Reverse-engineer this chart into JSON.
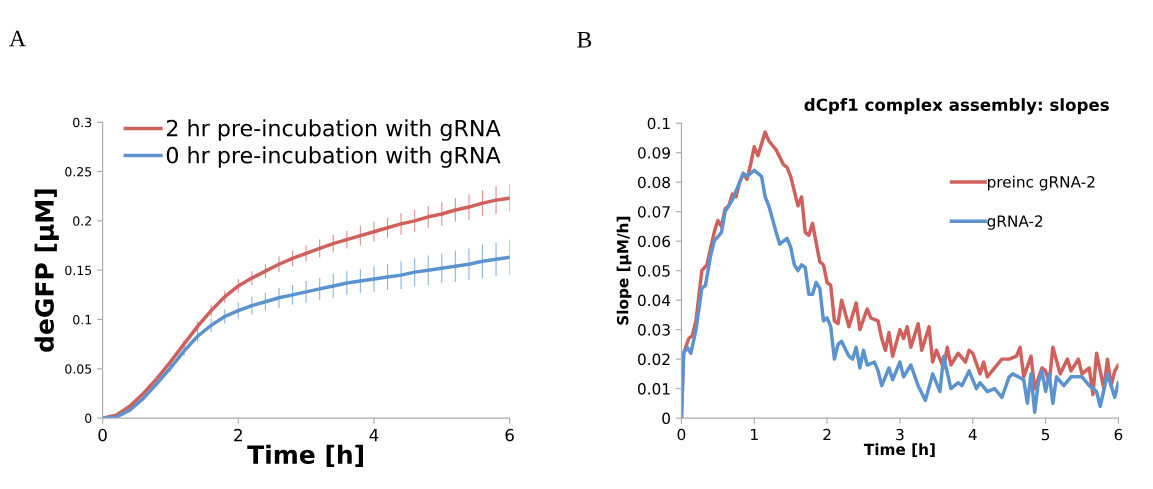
{
  "chart_data": [
    {
      "type": "line",
      "title": "A",
      "xlabel": "Time [h]",
      "ylabel": "deGFP [µM]",
      "x": [
        0,
        0.2,
        0.4,
        0.6,
        0.8,
        1.0,
        1.2,
        1.4,
        1.6,
        1.8,
        2.0,
        2.2,
        2.4,
        2.6,
        2.8,
        3.0,
        3.2,
        3.4,
        3.6,
        3.8,
        4.0,
        4.2,
        4.4,
        4.6,
        4.8,
        5.0,
        5.2,
        5.4,
        5.6,
        5.8,
        6.0
      ],
      "series": [
        {
          "name": "2 hr pre-incubation with gRNA",
          "color": "#d0605b",
          "values": [
            0,
            0.003,
            0.012,
            0.025,
            0.04,
            0.057,
            0.075,
            0.093,
            0.109,
            0.123,
            0.134,
            0.142,
            0.149,
            0.156,
            0.162,
            0.167,
            0.172,
            0.177,
            0.181,
            0.185,
            0.189,
            0.193,
            0.197,
            0.2,
            0.204,
            0.207,
            0.211,
            0.214,
            0.218,
            0.221,
            0.223
          ],
          "errors": [
            0,
            0.001,
            0.001,
            0.002,
            0.002,
            0.003,
            0.004,
            0.005,
            0.006,
            0.006,
            0.007,
            0.007,
            0.007,
            0.008,
            0.008,
            0.008,
            0.009,
            0.009,
            0.009,
            0.01,
            0.01,
            0.01,
            0.011,
            0.011,
            0.011,
            0.012,
            0.012,
            0.013,
            0.013,
            0.014,
            0.014
          ]
        },
        {
          "name": "0 hr pre-incubation with gRNA",
          "color": "#5b93cf",
          "values": [
            0,
            0.001,
            0.008,
            0.02,
            0.035,
            0.051,
            0.068,
            0.083,
            0.094,
            0.103,
            0.109,
            0.114,
            0.118,
            0.122,
            0.125,
            0.128,
            0.131,
            0.134,
            0.137,
            0.139,
            0.141,
            0.143,
            0.145,
            0.148,
            0.15,
            0.152,
            0.154,
            0.156,
            0.159,
            0.161,
            0.163
          ],
          "errors": [
            0,
            0.001,
            0.001,
            0.002,
            0.003,
            0.004,
            0.005,
            0.006,
            0.007,
            0.007,
            0.008,
            0.009,
            0.009,
            0.01,
            0.01,
            0.011,
            0.011,
            0.012,
            0.012,
            0.012,
            0.013,
            0.013,
            0.014,
            0.014,
            0.015,
            0.015,
            0.016,
            0.016,
            0.017,
            0.017,
            0.018
          ]
        }
      ],
      "xlim": [
        0,
        6
      ],
      "xticks": [
        0,
        2,
        4,
        6
      ],
      "ylim": [
        0,
        0.3
      ],
      "yticks": [
        0,
        0.05,
        0.1,
        0.15,
        0.2,
        0.25,
        0.3
      ],
      "grid": false,
      "legend": "top right",
      "marker": "none",
      "line_style": "solid"
    },
    {
      "type": "line",
      "title": "B",
      "subtitle": "dCpf1 complex assembly: slopes",
      "xlabel": "Time [h]",
      "ylabel": "Slope [µM/h]",
      "series": [
        {
          "name": "preinc gRNA-2",
          "color": "#d0605b",
          "x": [
            0,
            0.03,
            0.1,
            0.15,
            0.2,
            0.28,
            0.35,
            0.45,
            0.5,
            0.55,
            0.6,
            0.65,
            0.7,
            0.75,
            0.8,
            0.85,
            0.9,
            0.95,
            1.0,
            1.05,
            1.1,
            1.15,
            1.2,
            1.3,
            1.4,
            1.45,
            1.5,
            1.6,
            1.65,
            1.7,
            1.75,
            1.8,
            1.9,
            1.95,
            2.0,
            2.05,
            2.1,
            2.15,
            2.2,
            2.3,
            2.4,
            2.45,
            2.55,
            2.6,
            2.7,
            2.75,
            2.8,
            2.85,
            2.9,
            3.0,
            3.05,
            3.1,
            3.15,
            3.25,
            3.3,
            3.4,
            3.45,
            3.5,
            3.6,
            3.65,
            3.7,
            3.8,
            3.9,
            3.95,
            4.0,
            4.1,
            4.15,
            4.2,
            4.3,
            4.4,
            4.5,
            4.6,
            4.65,
            4.7,
            4.8,
            4.85,
            4.95,
            5.0,
            5.05,
            5.1,
            5.2,
            5.3,
            5.35,
            5.45,
            5.5,
            5.6,
            5.65,
            5.7,
            5.8,
            5.85,
            5.9,
            5.95,
            6.0
          ],
          "values": [
            0,
            0.022,
            0.027,
            0.028,
            0.033,
            0.05,
            0.052,
            0.063,
            0.067,
            0.065,
            0.071,
            0.072,
            0.076,
            0.075,
            0.08,
            0.083,
            0.081,
            0.086,
            0.092,
            0.089,
            0.093,
            0.097,
            0.094,
            0.091,
            0.086,
            0.085,
            0.082,
            0.072,
            0.075,
            0.063,
            0.062,
            0.066,
            0.053,
            0.052,
            0.046,
            0.045,
            0.033,
            0.032,
            0.04,
            0.031,
            0.039,
            0.03,
            0.037,
            0.034,
            0.033,
            0.027,
            0.023,
            0.029,
            0.021,
            0.03,
            0.027,
            0.031,
            0.024,
            0.032,
            0.023,
            0.031,
            0.019,
            0.023,
            0.017,
            0.024,
            0.018,
            0.022,
            0.019,
            0.023,
            0.022,
            0.015,
            0.019,
            0.014,
            0.017,
            0.02,
            0.02,
            0.021,
            0.024,
            0.014,
            0.021,
            0.01,
            0.017,
            0.016,
            0.012,
            0.024,
            0.015,
            0.02,
            0.016,
            0.02,
            0.015,
            0.017,
            0.008,
            0.022,
            0.01,
            0.02,
            0.011,
            0.016,
            0.018
          ]
        },
        {
          "name": "gRNA-2",
          "color": "#5b93cf",
          "x": [
            0,
            0.03,
            0.08,
            0.13,
            0.2,
            0.28,
            0.33,
            0.4,
            0.45,
            0.55,
            0.6,
            0.7,
            0.8,
            0.85,
            0.9,
            0.95,
            1.0,
            1.05,
            1.1,
            1.15,
            1.2,
            1.3,
            1.35,
            1.4,
            1.45,
            1.5,
            1.55,
            1.6,
            1.65,
            1.7,
            1.75,
            1.8,
            1.85,
            1.9,
            1.95,
            2.0,
            2.05,
            2.1,
            2.15,
            2.2,
            2.3,
            2.35,
            2.4,
            2.45,
            2.5,
            2.55,
            2.65,
            2.7,
            2.75,
            2.85,
            2.9,
            3.0,
            3.05,
            3.15,
            3.25,
            3.35,
            3.45,
            3.55,
            3.6,
            3.7,
            3.8,
            3.85,
            3.95,
            4.05,
            4.1,
            4.2,
            4.3,
            4.4,
            4.5,
            4.55,
            4.7,
            4.75,
            4.8,
            4.85,
            4.9,
            4.95,
            5.0,
            5.05,
            5.1,
            5.15,
            5.25,
            5.35,
            5.5,
            5.6,
            5.7,
            5.75,
            5.85,
            5.95,
            6.0
          ],
          "values": [
            0,
            0.022,
            0.024,
            0.022,
            0.03,
            0.044,
            0.045,
            0.055,
            0.06,
            0.063,
            0.07,
            0.074,
            0.08,
            0.083,
            0.082,
            0.083,
            0.084,
            0.083,
            0.082,
            0.075,
            0.072,
            0.063,
            0.059,
            0.06,
            0.061,
            0.058,
            0.052,
            0.05,
            0.052,
            0.051,
            0.042,
            0.042,
            0.046,
            0.044,
            0.033,
            0.034,
            0.031,
            0.02,
            0.025,
            0.026,
            0.021,
            0.02,
            0.024,
            0.017,
            0.023,
            0.018,
            0.019,
            0.016,
            0.011,
            0.017,
            0.013,
            0.019,
            0.014,
            0.018,
            0.011,
            0.006,
            0.015,
            0.009,
            0.021,
            0.01,
            0.012,
            0.011,
            0.016,
            0.01,
            0.012,
            0.009,
            0.01,
            0.007,
            0.014,
            0.015,
            0.013,
            0.005,
            0.015,
            0.002,
            0.012,
            0.016,
            0.009,
            0.015,
            0.005,
            0.014,
            0.011,
            0.014,
            0.014,
            0.011,
            0.009,
            0.004,
            0.015,
            0.007,
            0.012
          ]
        }
      ],
      "xlim": [
        0,
        6
      ],
      "xticks": [
        0,
        1,
        2,
        3,
        4,
        5,
        6
      ],
      "ylim": [
        0,
        0.1
      ],
      "yticks": [
        0,
        0.01,
        0.02,
        0.03,
        0.04,
        0.05,
        0.06,
        0.07,
        0.08,
        0.09,
        0.1
      ],
      "grid": false,
      "legend": "right",
      "marker": "none",
      "line_style": "solid"
    }
  ]
}
